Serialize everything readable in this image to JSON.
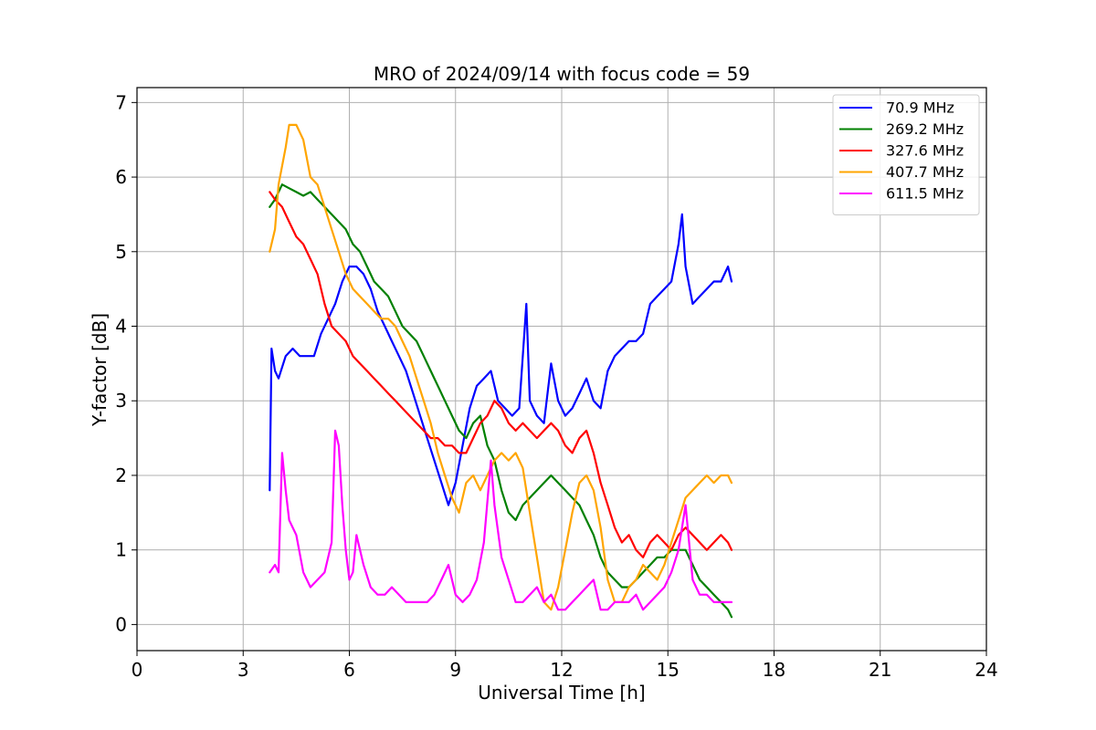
{
  "chart_data": {
    "type": "line",
    "title": "MRO of 2024/09/14 with focus code = 59",
    "xlabel": "Universal Time [h]",
    "ylabel": "Y-factor [dB]",
    "xlim": [
      0,
      24
    ],
    "ylim": [
      -0.35,
      7.2
    ],
    "xticks": [
      0,
      3,
      6,
      9,
      12,
      15,
      18,
      21,
      24
    ],
    "yticks": [
      0,
      1,
      2,
      3,
      4,
      5,
      6,
      7
    ],
    "grid": true,
    "legend_position": "top-right",
    "series": [
      {
        "name": " 70.9 MHz",
        "color": "#0000ff",
        "x": [
          3.75,
          3.8,
          3.9,
          4.0,
          4.2,
          4.4,
          4.6,
          4.8,
          5.0,
          5.2,
          5.4,
          5.6,
          5.8,
          6.0,
          6.2,
          6.4,
          6.6,
          6.8,
          7.0,
          7.2,
          7.4,
          7.6,
          7.8,
          8.0,
          8.2,
          8.4,
          8.6,
          8.8,
          9.0,
          9.2,
          9.4,
          9.6,
          9.8,
          10.0,
          10.2,
          10.4,
          10.6,
          10.8,
          11.0,
          11.1,
          11.3,
          11.5,
          11.7,
          11.9,
          12.1,
          12.3,
          12.5,
          12.7,
          12.9,
          13.1,
          13.3,
          13.5,
          13.7,
          13.9,
          14.1,
          14.3,
          14.5,
          14.7,
          14.9,
          15.1,
          15.3,
          15.4,
          15.5,
          15.7,
          15.9,
          16.1,
          16.3,
          16.5,
          16.7,
          16.8
        ],
        "y": [
          1.8,
          3.7,
          3.4,
          3.3,
          3.6,
          3.7,
          3.6,
          3.6,
          3.6,
          3.9,
          4.1,
          4.3,
          4.6,
          4.8,
          4.8,
          4.7,
          4.5,
          4.2,
          4.0,
          3.8,
          3.6,
          3.4,
          3.1,
          2.8,
          2.5,
          2.2,
          1.9,
          1.6,
          1.9,
          2.4,
          2.9,
          3.2,
          3.3,
          3.4,
          3.0,
          2.9,
          2.8,
          2.9,
          4.3,
          3.0,
          2.8,
          2.7,
          3.5,
          3.0,
          2.8,
          2.9,
          3.1,
          3.3,
          3.0,
          2.9,
          3.4,
          3.6,
          3.7,
          3.8,
          3.8,
          3.9,
          4.3,
          4.4,
          4.5,
          4.6,
          5.1,
          5.5,
          4.8,
          4.3,
          4.4,
          4.5,
          4.6,
          4.6,
          4.8,
          4.6
        ]
      },
      {
        "name": "269.2 MHz",
        "color": "#008000",
        "x": [
          3.75,
          3.9,
          4.1,
          4.3,
          4.5,
          4.7,
          4.9,
          5.1,
          5.3,
          5.5,
          5.7,
          5.9,
          6.1,
          6.3,
          6.5,
          6.7,
          6.9,
          7.1,
          7.3,
          7.5,
          7.7,
          7.9,
          8.1,
          8.3,
          8.5,
          8.7,
          8.9,
          9.1,
          9.3,
          9.5,
          9.7,
          9.9,
          10.1,
          10.3,
          10.5,
          10.7,
          10.9,
          11.1,
          11.3,
          11.5,
          11.7,
          11.9,
          12.1,
          12.3,
          12.5,
          12.7,
          12.9,
          13.1,
          13.3,
          13.5,
          13.7,
          13.9,
          14.1,
          14.3,
          14.5,
          14.7,
          14.9,
          15.1,
          15.3,
          15.5,
          15.7,
          15.9,
          16.1,
          16.3,
          16.5,
          16.7,
          16.8
        ],
        "y": [
          5.6,
          5.7,
          5.9,
          5.85,
          5.8,
          5.75,
          5.8,
          5.7,
          5.6,
          5.5,
          5.4,
          5.3,
          5.1,
          5.0,
          4.8,
          4.6,
          4.5,
          4.4,
          4.2,
          4.0,
          3.9,
          3.8,
          3.6,
          3.4,
          3.2,
          3.0,
          2.8,
          2.6,
          2.5,
          2.7,
          2.8,
          2.4,
          2.2,
          1.8,
          1.5,
          1.4,
          1.6,
          1.7,
          1.8,
          1.9,
          2.0,
          1.9,
          1.8,
          1.7,
          1.6,
          1.4,
          1.2,
          0.9,
          0.7,
          0.6,
          0.5,
          0.5,
          0.6,
          0.7,
          0.8,
          0.9,
          0.9,
          1.0,
          1.0,
          1.0,
          0.8,
          0.6,
          0.5,
          0.4,
          0.3,
          0.2,
          0.1
        ]
      },
      {
        "name": "327.6 MHz",
        "color": "#ff0000",
        "x": [
          3.75,
          3.9,
          4.1,
          4.3,
          4.5,
          4.7,
          4.9,
          5.1,
          5.3,
          5.5,
          5.7,
          5.9,
          6.1,
          6.3,
          6.5,
          6.7,
          6.9,
          7.1,
          7.3,
          7.5,
          7.7,
          7.9,
          8.1,
          8.3,
          8.5,
          8.7,
          8.9,
          9.1,
          9.3,
          9.5,
          9.7,
          9.9,
          10.1,
          10.3,
          10.5,
          10.7,
          10.9,
          11.1,
          11.3,
          11.5,
          11.7,
          11.9,
          12.1,
          12.3,
          12.5,
          12.7,
          12.9,
          13.1,
          13.3,
          13.5,
          13.7,
          13.9,
          14.1,
          14.3,
          14.5,
          14.7,
          14.9,
          15.1,
          15.3,
          15.5,
          15.7,
          15.9,
          16.1,
          16.3,
          16.5,
          16.7,
          16.8
        ],
        "y": [
          5.8,
          5.7,
          5.6,
          5.4,
          5.2,
          5.1,
          4.9,
          4.7,
          4.3,
          4.0,
          3.9,
          3.8,
          3.6,
          3.5,
          3.4,
          3.3,
          3.2,
          3.1,
          3.0,
          2.9,
          2.8,
          2.7,
          2.6,
          2.5,
          2.5,
          2.4,
          2.4,
          2.3,
          2.3,
          2.5,
          2.7,
          2.8,
          3.0,
          2.9,
          2.7,
          2.6,
          2.7,
          2.6,
          2.5,
          2.6,
          2.7,
          2.6,
          2.4,
          2.3,
          2.5,
          2.6,
          2.3,
          1.9,
          1.6,
          1.3,
          1.1,
          1.2,
          1.0,
          0.9,
          1.1,
          1.2,
          1.1,
          1.0,
          1.2,
          1.3,
          1.2,
          1.1,
          1.0,
          1.1,
          1.2,
          1.1,
          1.0
        ]
      },
      {
        "name": "407.7 MHz",
        "color": "#ffa500",
        "x": [
          3.75,
          3.9,
          4.0,
          4.2,
          4.3,
          4.5,
          4.7,
          4.9,
          5.1,
          5.3,
          5.5,
          5.7,
          5.9,
          6.1,
          6.3,
          6.5,
          6.7,
          6.9,
          7.1,
          7.3,
          7.5,
          7.7,
          7.9,
          8.1,
          8.3,
          8.5,
          8.7,
          8.9,
          9.1,
          9.3,
          9.5,
          9.7,
          9.9,
          10.1,
          10.3,
          10.5,
          10.7,
          10.9,
          11.1,
          11.3,
          11.5,
          11.7,
          11.9,
          12.1,
          12.3,
          12.5,
          12.7,
          12.9,
          13.1,
          13.3,
          13.5,
          13.7,
          13.9,
          14.1,
          14.3,
          14.5,
          14.7,
          14.9,
          15.1,
          15.3,
          15.5,
          15.7,
          15.9,
          16.1,
          16.3,
          16.5,
          16.7,
          16.8
        ],
        "y": [
          5.0,
          5.3,
          5.9,
          6.4,
          6.7,
          6.7,
          6.5,
          6.0,
          5.9,
          5.6,
          5.3,
          5.0,
          4.7,
          4.5,
          4.4,
          4.3,
          4.2,
          4.1,
          4.1,
          4.0,
          3.8,
          3.6,
          3.3,
          3.0,
          2.7,
          2.3,
          2.0,
          1.7,
          1.5,
          1.9,
          2.0,
          1.8,
          2.0,
          2.2,
          2.3,
          2.2,
          2.3,
          2.1,
          1.5,
          0.9,
          0.3,
          0.2,
          0.5,
          1.0,
          1.5,
          1.9,
          2.0,
          1.8,
          1.3,
          0.6,
          0.3,
          0.3,
          0.5,
          0.6,
          0.8,
          0.7,
          0.6,
          0.8,
          1.1,
          1.4,
          1.7,
          1.8,
          1.9,
          2.0,
          1.9,
          2.0,
          2.0,
          1.9
        ]
      },
      {
        "name": "611.5 MHz",
        "color": "#ff00ff",
        "x": [
          3.75,
          3.9,
          4.0,
          4.1,
          4.2,
          4.3,
          4.5,
          4.7,
          4.9,
          5.1,
          5.3,
          5.5,
          5.6,
          5.7,
          5.8,
          5.9,
          6.0,
          6.1,
          6.2,
          6.4,
          6.6,
          6.8,
          7.0,
          7.2,
          7.4,
          7.6,
          7.8,
          8.0,
          8.2,
          8.4,
          8.6,
          8.8,
          9.0,
          9.2,
          9.4,
          9.6,
          9.8,
          10.0,
          10.1,
          10.3,
          10.5,
          10.7,
          10.9,
          11.1,
          11.3,
          11.5,
          11.7,
          11.9,
          12.1,
          12.3,
          12.5,
          12.7,
          12.9,
          13.1,
          13.3,
          13.5,
          13.7,
          13.9,
          14.1,
          14.3,
          14.5,
          14.7,
          14.9,
          15.1,
          15.3,
          15.5,
          15.7,
          15.9,
          16.1,
          16.3,
          16.5,
          16.7,
          16.8
        ],
        "y": [
          0.7,
          0.8,
          0.7,
          2.3,
          1.8,
          1.4,
          1.2,
          0.7,
          0.5,
          0.6,
          0.7,
          1.1,
          2.6,
          2.4,
          1.6,
          1.0,
          0.6,
          0.7,
          1.2,
          0.8,
          0.5,
          0.4,
          0.4,
          0.5,
          0.4,
          0.3,
          0.3,
          0.3,
          0.3,
          0.4,
          0.6,
          0.8,
          0.4,
          0.3,
          0.4,
          0.6,
          1.1,
          2.2,
          1.6,
          0.9,
          0.6,
          0.3,
          0.3,
          0.4,
          0.5,
          0.3,
          0.4,
          0.2,
          0.2,
          0.3,
          0.4,
          0.5,
          0.6,
          0.2,
          0.2,
          0.3,
          0.3,
          0.3,
          0.4,
          0.2,
          0.3,
          0.4,
          0.5,
          0.7,
          1.0,
          1.6,
          0.6,
          0.4,
          0.4,
          0.3,
          0.3,
          0.3,
          0.3
        ]
      }
    ]
  }
}
